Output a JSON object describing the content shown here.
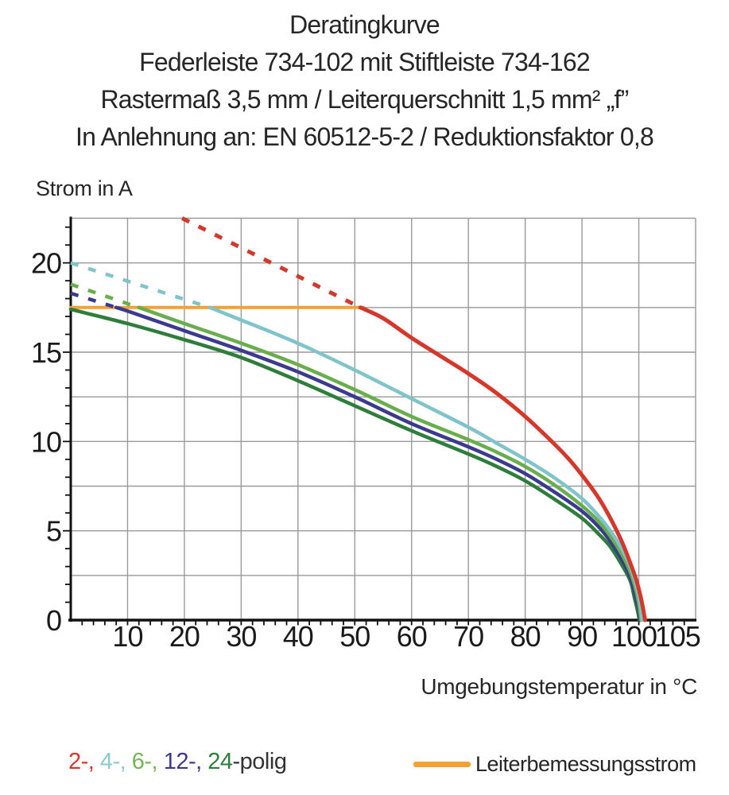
{
  "title": {
    "line1": "Deratingkurve",
    "line2": "Federleiste 734-102 mit Stiftleiste 734-162",
    "line3": "Rastermaß 3,5 mm / Leiterquerschnitt 1,5 mm² „f”",
    "line4": "In Anlehnung an: EN 60512-5-2 / Reduktionsfaktor 0,8"
  },
  "axis": {
    "y_label": "Strom in A",
    "x_label": "Umgebungstemperatur in °C"
  },
  "legend": {
    "poles": [
      {
        "label": "2-,",
        "color": "#d5382a"
      },
      {
        "label": "4-,",
        "color": "#8ec9ce"
      },
      {
        "label": "6-,",
        "color": "#74b657"
      },
      {
        "label": "12-,",
        "color": "#3b3a8f"
      },
      {
        "label": "24",
        "color": "#2e7d3b"
      }
    ],
    "poles_suffix": "-polig",
    "poles_suffix_color": "#333333",
    "rated_label": "Leiterbemessungsstrom",
    "rated_color": "#f2a132"
  },
  "chart_data": {
    "type": "line",
    "xlabel": "Umgebungstemperatur in °C",
    "ylabel": "Strom in A",
    "xlim": [
      0,
      110
    ],
    "ylim": [
      0,
      22.5
    ],
    "x_grid_step": 10,
    "y_grid_step": 2.5,
    "x_minor_tick_step": 2,
    "y_minor_tick_step": 1,
    "grid": true,
    "x_ticks": [
      10,
      20,
      30,
      40,
      50,
      60,
      70,
      80,
      90,
      100,
      105
    ],
    "y_ticks": [
      0,
      5,
      10,
      15,
      20
    ],
    "rated_current_A": 17.5,
    "series": [
      {
        "name": "Leiterbemessungsstrom",
        "color": "#f2a132",
        "width": 4,
        "straight": true,
        "solid": [
          [
            0,
            17.5
          ],
          [
            51.5,
            17.5
          ]
        ]
      },
      {
        "name": "24-polig",
        "color": "#2e7d3b",
        "solid": [
          [
            0,
            17.4
          ],
          [
            10,
            16.6
          ],
          [
            20,
            15.7
          ],
          [
            30,
            14.7
          ],
          [
            40,
            13.4
          ],
          [
            50,
            12.0
          ],
          [
            60,
            10.6
          ],
          [
            70,
            9.3
          ],
          [
            75,
            8.6
          ],
          [
            80,
            7.8
          ],
          [
            85,
            6.8
          ],
          [
            90,
            5.7
          ],
          [
            93,
            4.8
          ],
          [
            95,
            4.1
          ],
          [
            97,
            3.1
          ],
          [
            98.5,
            2.2
          ],
          [
            99.2,
            1.3
          ],
          [
            99.8,
            0.5
          ],
          [
            100.1,
            0
          ]
        ]
      },
      {
        "name": "12-polig",
        "color": "#3b3a8f",
        "dashed": [
          [
            0,
            18.3
          ],
          [
            8,
            17.5
          ]
        ],
        "solid": [
          [
            8,
            17.5
          ],
          [
            10,
            17.3
          ],
          [
            20,
            16.2
          ],
          [
            30,
            15.1
          ],
          [
            40,
            13.9
          ],
          [
            50,
            12.5
          ],
          [
            60,
            11.0
          ],
          [
            70,
            9.7
          ],
          [
            75,
            9.0
          ],
          [
            80,
            8.2
          ],
          [
            85,
            7.2
          ],
          [
            90,
            6.1
          ],
          [
            93,
            5.2
          ],
          [
            95,
            4.4
          ],
          [
            97,
            3.4
          ],
          [
            98.5,
            2.4
          ],
          [
            99.3,
            1.5
          ],
          [
            99.9,
            0.7
          ],
          [
            100.2,
            0
          ]
        ]
      },
      {
        "name": "6-polig",
        "color": "#68ae4c",
        "dashed": [
          [
            0,
            18.8
          ],
          [
            12,
            17.5
          ]
        ],
        "solid": [
          [
            12,
            17.5
          ],
          [
            20,
            16.6
          ],
          [
            30,
            15.5
          ],
          [
            40,
            14.3
          ],
          [
            50,
            12.9
          ],
          [
            60,
            11.4
          ],
          [
            70,
            10.1
          ],
          [
            75,
            9.4
          ],
          [
            80,
            8.6
          ],
          [
            85,
            7.6
          ],
          [
            90,
            6.4
          ],
          [
            93,
            5.5
          ],
          [
            95,
            4.7
          ],
          [
            97,
            3.7
          ],
          [
            98.5,
            2.7
          ],
          [
            99.4,
            1.8
          ],
          [
            100,
            0.9
          ],
          [
            100.4,
            0
          ]
        ]
      },
      {
        "name": "4-polig",
        "color": "#7fc4ca",
        "dashed": [
          [
            0,
            20.0
          ],
          [
            24.5,
            17.5
          ]
        ],
        "solid": [
          [
            24.5,
            17.5
          ],
          [
            30,
            16.8
          ],
          [
            40,
            15.5
          ],
          [
            50,
            14.0
          ],
          [
            60,
            12.4
          ],
          [
            70,
            10.8
          ],
          [
            75,
            9.9
          ],
          [
            80,
            9.0
          ],
          [
            85,
            8.0
          ],
          [
            90,
            6.8
          ],
          [
            93,
            5.8
          ],
          [
            95,
            5.0
          ],
          [
            97,
            4.0
          ],
          [
            98.5,
            3.0
          ],
          [
            99.5,
            2.0
          ],
          [
            100.2,
            1.0
          ],
          [
            100.6,
            0
          ]
        ]
      },
      {
        "name": "2-polig",
        "color": "#d5382a",
        "width": 5,
        "dashed": [
          [
            19.6,
            22.5
          ],
          [
            51,
            17.5
          ]
        ],
        "solid": [
          [
            51,
            17.5
          ],
          [
            55,
            16.9
          ],
          [
            60,
            15.8
          ],
          [
            65,
            14.8
          ],
          [
            70,
            13.8
          ],
          [
            75,
            12.7
          ],
          [
            80,
            11.4
          ],
          [
            85,
            9.9
          ],
          [
            88,
            8.9
          ],
          [
            91,
            7.7
          ],
          [
            93,
            6.8
          ],
          [
            95,
            5.7
          ],
          [
            97,
            4.4
          ],
          [
            98.5,
            3.2
          ],
          [
            99.6,
            2.2
          ],
          [
            100.4,
            1.2
          ],
          [
            101,
            0.2
          ],
          [
            101.1,
            0
          ]
        ]
      }
    ]
  }
}
